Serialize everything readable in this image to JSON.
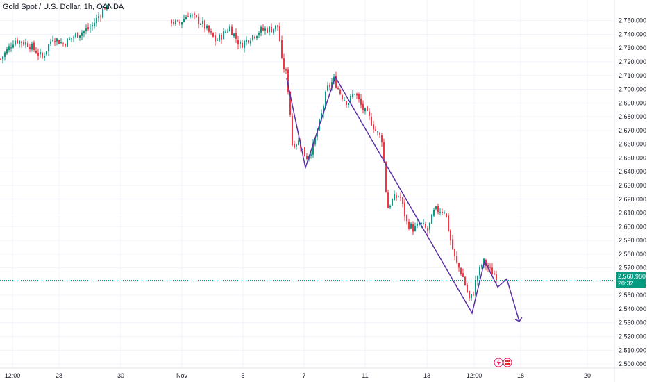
{
  "chart_data": {
    "type": "candlestick",
    "title": "Gold Spot / U.S. Dollar, 1h, OANDA",
    "last_price": "2,560.980",
    "countdown": "20:32",
    "ylim": [
      2497,
      2765
    ],
    "yticks": [
      "2,500.000",
      "2,510.000",
      "2,520.000",
      "2,530.000",
      "2,540.000",
      "2,550.000",
      "2,560.000",
      "2,570.000",
      "2,580.000",
      "2,590.000",
      "2,600.000",
      "2,610.000",
      "2,620.000",
      "2,630.000",
      "2,640.000",
      "2,650.000",
      "2,660.000",
      "2,670.000",
      "2,680.000",
      "2,690.000",
      "2,700.000",
      "2,710.000",
      "2,720.000",
      "2,730.000",
      "2,740.000",
      "2,750.000"
    ],
    "xticks": [
      "12:00",
      "28",
      "30",
      "Nov",
      "5",
      "7",
      "11",
      "13",
      "12:00",
      "18",
      "20"
    ],
    "price_path": [
      [
        0,
        2722
      ],
      [
        20,
        2736
      ],
      [
        40,
        2733
      ],
      [
        60,
        2723
      ],
      [
        75,
        2738
      ],
      [
        90,
        2733
      ],
      [
        110,
        2740
      ],
      [
        130,
        2745
      ],
      [
        150,
        2760
      ],
      [
        155,
        2758
      ],
      [
        246,
        2750
      ],
      [
        256,
        2747
      ],
      [
        270,
        2755
      ],
      [
        290,
        2748
      ],
      [
        310,
        2735
      ],
      [
        330,
        2745
      ],
      [
        345,
        2732
      ],
      [
        360,
        2738
      ],
      [
        375,
        2743
      ],
      [
        390,
        2744
      ],
      [
        400,
        2746
      ],
      [
        405,
        2720
      ],
      [
        412,
        2710
      ],
      [
        416,
        2690
      ],
      [
        420,
        2660
      ],
      [
        430,
        2662
      ],
      [
        440,
        2650
      ],
      [
        450,
        2658
      ],
      [
        460,
        2677
      ],
      [
        470,
        2700
      ],
      [
        480,
        2707
      ],
      [
        490,
        2696
      ],
      [
        500,
        2690
      ],
      [
        510,
        2698
      ],
      [
        520,
        2687
      ],
      [
        530,
        2680
      ],
      [
        540,
        2670
      ],
      [
        550,
        2663
      ],
      [
        553,
        2640
      ],
      [
        557,
        2613
      ],
      [
        565,
        2620
      ],
      [
        575,
        2623
      ],
      [
        585,
        2603
      ],
      [
        595,
        2598
      ],
      [
        605,
        2602
      ],
      [
        615,
        2597
      ],
      [
        625,
        2612
      ],
      [
        640,
        2612
      ],
      [
        648,
        2590
      ],
      [
        655,
        2575
      ],
      [
        665,
        2565
      ],
      [
        675,
        2547
      ],
      [
        680,
        2550
      ],
      [
        685,
        2562
      ],
      [
        695,
        2575
      ],
      [
        705,
        2568
      ],
      [
        716,
        2563
      ]
    ],
    "wave": [
      [
        413,
        2708
      ],
      [
        440,
        2643
      ],
      [
        483,
        2709
      ],
      [
        680,
        2537
      ],
      [
        698,
        2575
      ],
      [
        717,
        2556
      ],
      [
        730,
        2562
      ],
      [
        748,
        2531
      ]
    ]
  },
  "badge": {
    "price": "2,560.980",
    "countdown": "20:32"
  },
  "header": {
    "title": "Gold Spot / U.S. Dollar, 1h, OANDA"
  }
}
